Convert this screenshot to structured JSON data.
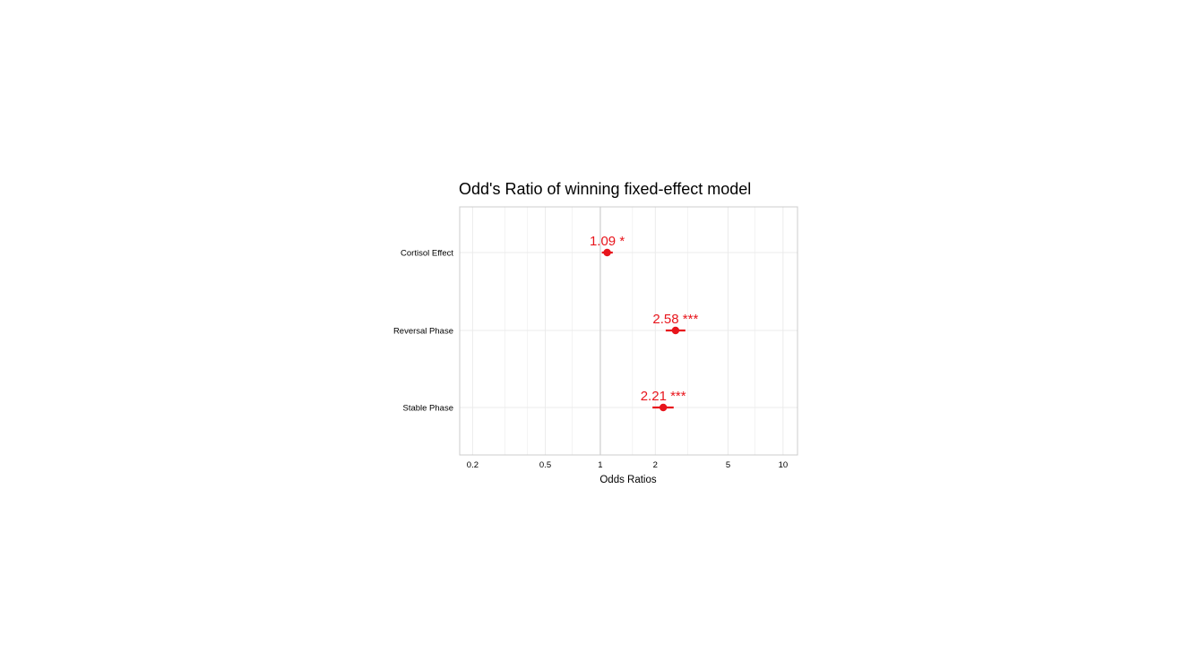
{
  "chart_data": {
    "type": "scatter",
    "title": "Odd's Ratio of winning fixed-effect model",
    "xlabel": "Odds Ratios",
    "ylabel": "",
    "x_scale": "log",
    "xlim": [
      0.17,
      12
    ],
    "x_ticks": [
      0.2,
      0.5,
      1,
      2,
      5,
      10
    ],
    "x_tick_labels": [
      "0.2",
      "0.5",
      "1",
      "2",
      "5",
      "10"
    ],
    "reference_line": 1,
    "grid": true,
    "legend": "none",
    "categories": [
      "Cortisol Effect",
      "Reversal Phase",
      "Stable Phase"
    ],
    "values": [
      1.09,
      2.58,
      2.21
    ],
    "ci_lower": [
      1.02,
      2.28,
      1.93
    ],
    "ci_upper": [
      1.17,
      2.92,
      2.52
    ],
    "labels": [
      "1.09 *",
      "2.58 ***",
      "2.21 ***"
    ],
    "color": "#e8151c"
  },
  "colors": {
    "point": "#e8151c",
    "grid": "#ebebeb",
    "reference": "#d4d4d4",
    "panel_border": "#cccccc"
  }
}
